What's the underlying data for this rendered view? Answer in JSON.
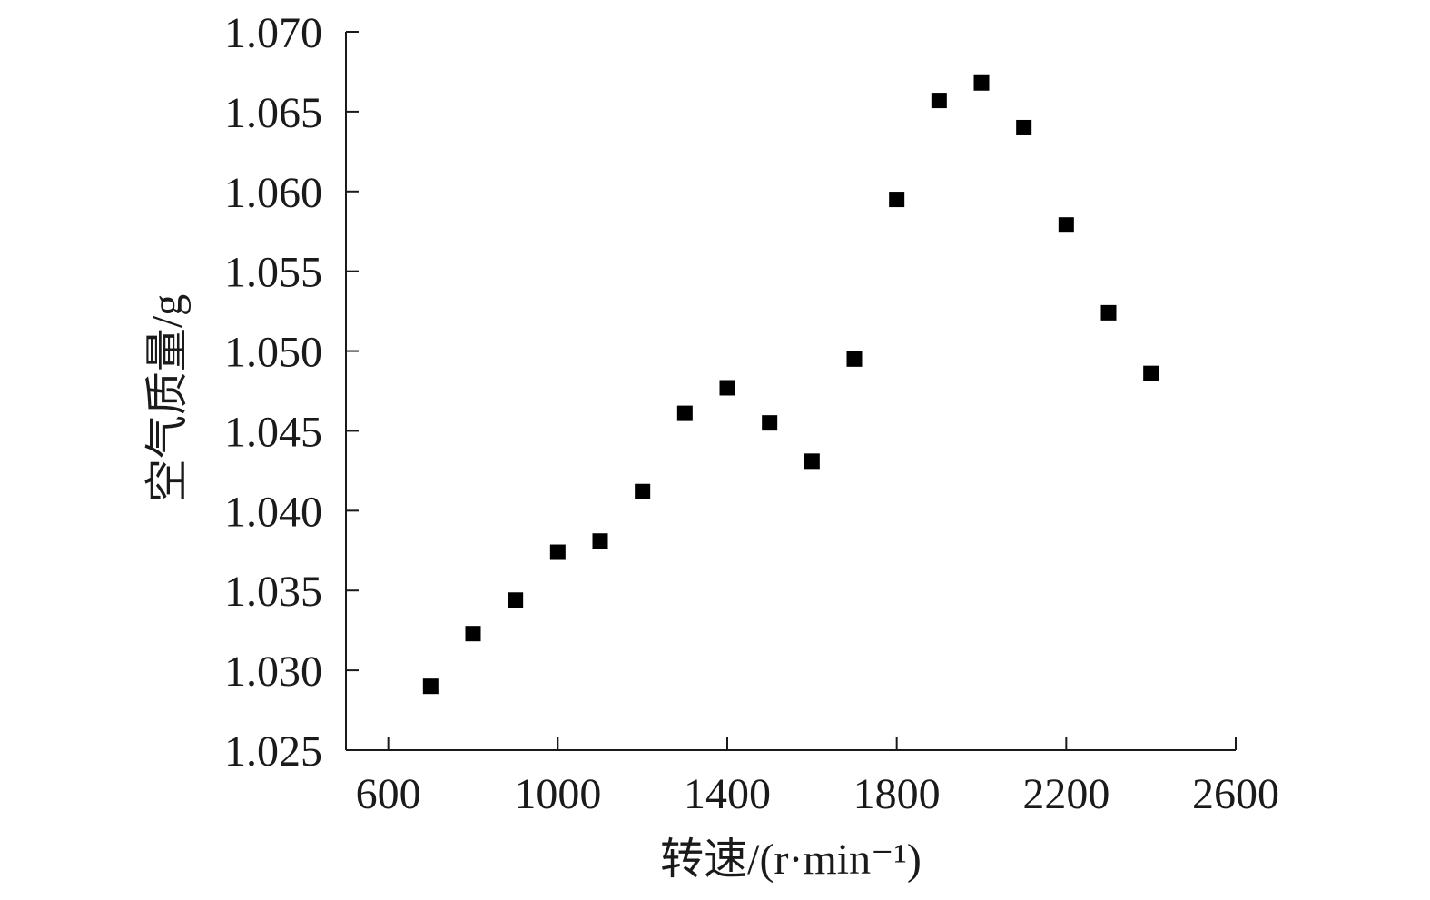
{
  "chart_data": {
    "type": "scatter",
    "title": "",
    "xlabel": "转速/(r·min⁻¹)",
    "ylabel": "空气质量/g",
    "xlim": [
      500,
      2600
    ],
    "ylim": [
      1.025,
      1.07
    ],
    "x_ticks": [
      600,
      1000,
      1400,
      1800,
      2200,
      2600
    ],
    "x_tick_labels": [
      "600",
      "1000",
      "1400",
      "1800",
      "2200",
      "2600"
    ],
    "y_ticks": [
      1.025,
      1.03,
      1.035,
      1.04,
      1.045,
      1.05,
      1.055,
      1.06,
      1.065,
      1.07
    ],
    "y_tick_labels": [
      "1.025",
      "1.030",
      "1.035",
      "1.040",
      "1.045",
      "1.050",
      "1.055",
      "1.060",
      "1.065",
      "1.070"
    ],
    "grid": false,
    "marker": "square",
    "marker_color": "#000000",
    "series": [
      {
        "x": [
          700,
          800,
          900,
          1000,
          1100,
          1200,
          1300,
          1400,
          1500,
          1600,
          1700,
          1800,
          1900,
          2000,
          2100,
          2200,
          2300,
          2400
        ],
        "values": [
          1.029,
          1.0323,
          1.0344,
          1.0374,
          1.0381,
          1.0412,
          1.0461,
          1.0477,
          1.0455,
          1.0431,
          1.0495,
          1.0595,
          1.0657,
          1.0668,
          1.064,
          1.0579,
          1.0524,
          1.0486
        ]
      }
    ]
  }
}
